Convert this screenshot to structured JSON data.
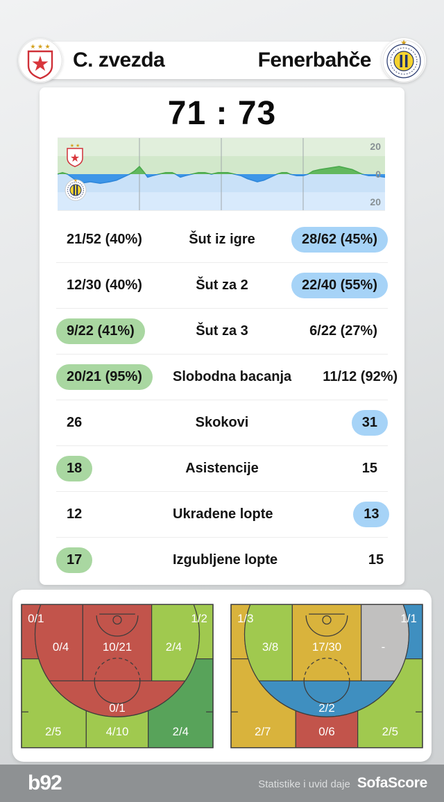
{
  "header": {
    "home_name": "C. zvezda",
    "away_name": "Fenerbahče"
  },
  "score": {
    "display": "71 : 73"
  },
  "momentum_axis": {
    "top": "20",
    "middle": "0",
    "bottom": "20"
  },
  "stats": {
    "rows": [
      {
        "home": "21/52 (40%)",
        "label": "Šut iz igre",
        "away": "28/62 (45%)",
        "highlight": "away"
      },
      {
        "home": "12/30 (40%)",
        "label": "Šut za 2",
        "away": "22/40 (55%)",
        "highlight": "away"
      },
      {
        "home": "9/22 (41%)",
        "label": "Šut za 3",
        "away": "6/22 (27%)",
        "highlight": "home"
      },
      {
        "home": "20/21 (95%)",
        "label": "Slobodna bacanja",
        "away": "11/12 (92%)",
        "highlight": "home"
      },
      {
        "home": "26",
        "label": "Skokovi",
        "away": "31",
        "highlight": "away"
      },
      {
        "home": "18",
        "label": "Asistencije",
        "away": "15",
        "highlight": "home"
      },
      {
        "home": "12",
        "label": "Ukradene lopte",
        "away": "13",
        "highlight": "away"
      },
      {
        "home": "17",
        "label": "Izgubljene lopte",
        "away": "15",
        "highlight": "home"
      }
    ]
  },
  "colors": {
    "home_highlight": "#a9d7a1",
    "away_highlight": "#a6d3f7",
    "home_series": "#62b85e",
    "home_series_stroke": "#4aa94c",
    "away_series": "#3e96e8",
    "away_series_stroke": "#2f87da",
    "momentum_bands": [
      "#e1efdc",
      "#d2e8cb",
      "#c9e1f8",
      "#d8eafc"
    ],
    "quarter_divider": "#a0a7aa",
    "axis_label": "#879094",
    "zone_red": "#c2544b",
    "zone_green": "#a0c94f",
    "zone_dark_green": "#58a35a",
    "zone_yellow": "#d9b33c",
    "zone_blue": "#3f8fc0",
    "zone_gray": "#c1c0bf"
  },
  "footer": {
    "brand": "b92",
    "credit": "Statistike i uvid daje",
    "provider": "SofaScore"
  },
  "chart_data": [
    {
      "type": "area",
      "name": "lead-momentum",
      "x_range_pct": [
        0,
        100
      ],
      "ylim": [
        -20,
        20
      ],
      "yticks": [
        "20",
        "0",
        "20"
      ],
      "quarter_dividers_pct": [
        25,
        50,
        75
      ],
      "positive_side": "C. zvezda",
      "negative_side": "Fenerbahče",
      "series": [
        {
          "name": "lead",
          "points": [
            [
              0,
              0
            ],
            [
              1.5,
              1
            ],
            [
              3,
              0
            ],
            [
              5,
              -3
            ],
            [
              7,
              -6
            ],
            [
              10,
              -5
            ],
            [
              13,
              -6
            ],
            [
              16,
              -5
            ],
            [
              18,
              -4
            ],
            [
              20,
              -2
            ],
            [
              22,
              0
            ],
            [
              23.5,
              2
            ],
            [
              25,
              5
            ],
            [
              26.5,
              1
            ],
            [
              27.5,
              -2
            ],
            [
              29,
              -1
            ],
            [
              31,
              0
            ],
            [
              33,
              1
            ],
            [
              35,
              1
            ],
            [
              36,
              0
            ],
            [
              37.5,
              -2
            ],
            [
              39,
              -1
            ],
            [
              41,
              0
            ],
            [
              43,
              1
            ],
            [
              45,
              1
            ],
            [
              47,
              0
            ],
            [
              49,
              1
            ],
            [
              52,
              1
            ],
            [
              54,
              0
            ],
            [
              56,
              -1
            ],
            [
              58,
              -3
            ],
            [
              61,
              -5
            ],
            [
              63,
              -4
            ],
            [
              65,
              -2
            ],
            [
              67,
              0
            ],
            [
              68.5,
              1
            ],
            [
              70,
              1
            ],
            [
              71,
              0
            ],
            [
              73,
              -1
            ],
            [
              75,
              -1
            ],
            [
              76.5,
              0
            ],
            [
              78,
              2
            ],
            [
              80,
              3
            ],
            [
              83,
              4
            ],
            [
              86,
              5
            ],
            [
              88,
              4
            ],
            [
              90,
              3
            ],
            [
              92,
              1
            ],
            [
              93,
              0
            ],
            [
              95,
              -1
            ],
            [
              97,
              -1
            ],
            [
              100,
              -2
            ]
          ]
        }
      ]
    },
    {
      "type": "heatmap",
      "name": "shot-zones-home",
      "team": "C. zvezda",
      "zones": [
        {
          "id": "corner_left",
          "value": "0/1",
          "color": "#c2544b"
        },
        {
          "id": "mid_left",
          "value": "0/4",
          "color": "#c2544b"
        },
        {
          "id": "paint",
          "value": "10/21",
          "color": "#c2544b"
        },
        {
          "id": "mid_right",
          "value": "2/4",
          "color": "#a0c94f"
        },
        {
          "id": "corner_right",
          "value": "1/2",
          "color": "#a0c94f"
        },
        {
          "id": "top_key",
          "value": "0/1",
          "color": "#c2544b"
        },
        {
          "id": "wing_left",
          "value": "2/5",
          "color": "#a0c94f"
        },
        {
          "id": "top_arc",
          "value": "4/10",
          "color": "#a0c94f"
        },
        {
          "id": "wing_right",
          "value": "2/4",
          "color": "#58a35a"
        }
      ]
    },
    {
      "type": "heatmap",
      "name": "shot-zones-away",
      "team": "Fenerbahče",
      "zones": [
        {
          "id": "corner_left",
          "value": "1/3",
          "color": "#d9b33c"
        },
        {
          "id": "mid_left",
          "value": "3/8",
          "color": "#a0c94f"
        },
        {
          "id": "paint",
          "value": "17/30",
          "color": "#d9b33c"
        },
        {
          "id": "mid_right",
          "value": "-",
          "color": "#c1c0bf"
        },
        {
          "id": "corner_right",
          "value": "1/1",
          "color": "#3f8fc0"
        },
        {
          "id": "top_key",
          "value": "2/2",
          "color": "#3f8fc0"
        },
        {
          "id": "wing_left",
          "value": "2/7",
          "color": "#d9b33c"
        },
        {
          "id": "top_arc",
          "value": "0/6",
          "color": "#c2544b"
        },
        {
          "id": "wing_right",
          "value": "2/5",
          "color": "#a0c94f"
        }
      ]
    }
  ]
}
